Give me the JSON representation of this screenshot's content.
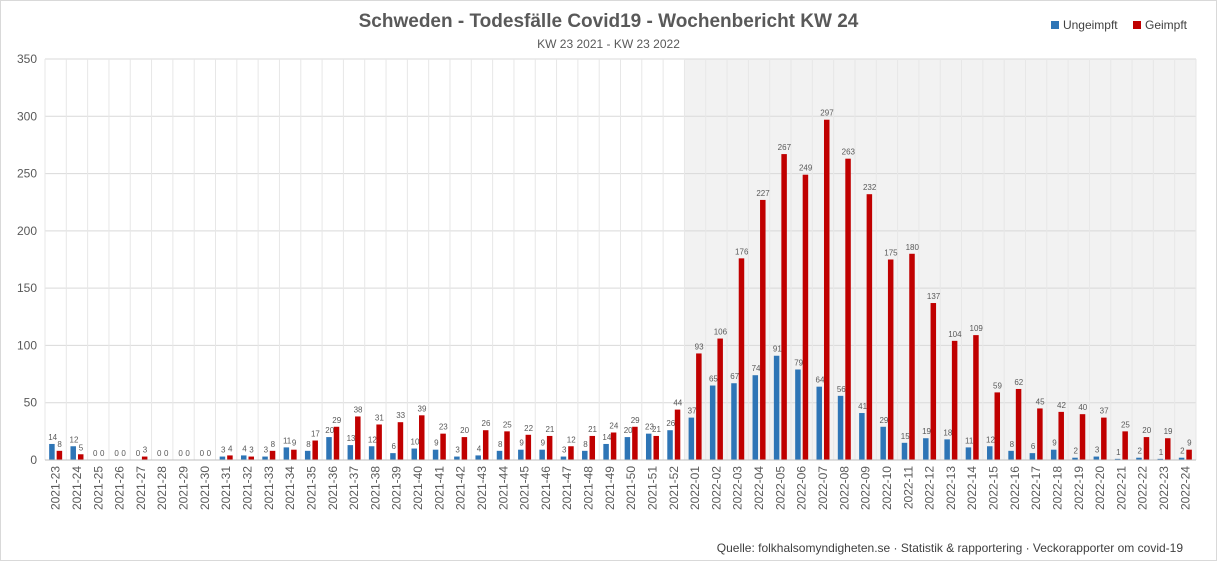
{
  "chart_data": {
    "type": "bar",
    "title": "Schweden - Todesfälle Covid19 - Wochenbericht KW 24",
    "subtitle": "KW 23 2021 - KW 23 2022",
    "ylim": [
      0,
      350
    ],
    "yticks": [
      0,
      50,
      100,
      150,
      200,
      250,
      300,
      350
    ],
    "grid": true,
    "legend_position": "top-right",
    "categories": [
      "2021-23",
      "2021-24",
      "2021-25",
      "2021-26",
      "2021-27",
      "2021-28",
      "2021-29",
      "2021-30",
      "2021-31",
      "2021-32",
      "2021-33",
      "2021-34",
      "2021-35",
      "2021-36",
      "2021-37",
      "2021-38",
      "2021-39",
      "2021-40",
      "2021-41",
      "2021-42",
      "2021-43",
      "2021-44",
      "2021-45",
      "2021-46",
      "2021-47",
      "2021-48",
      "2021-49",
      "2021-50",
      "2021-51",
      "2021-52",
      "2022-01",
      "2022-02",
      "2022-03",
      "2022-04",
      "2022-05",
      "2022-06",
      "2022-07",
      "2022-08",
      "2022-09",
      "2022-10",
      "2022-11",
      "2022-12",
      "2022-13",
      "2022-14",
      "2022-15",
      "2022-16",
      "2022-17",
      "2022-18",
      "2022-19",
      "2022-20",
      "2022-21",
      "2022-22",
      "2022-23",
      "2022-24"
    ],
    "series": [
      {
        "name": "Ungeimpft",
        "color": "#2e75b6",
        "values": [
          14,
          12,
          0,
          0,
          0,
          0,
          0,
          0,
          3,
          4,
          3,
          11,
          8,
          20,
          13,
          12,
          6,
          10,
          9,
          3,
          4,
          8,
          9,
          9,
          3,
          8,
          14,
          20,
          23,
          26,
          37,
          65,
          67,
          74,
          91,
          79,
          64,
          56,
          41,
          29,
          15,
          19,
          18,
          11,
          12,
          8,
          6,
          9,
          2,
          3,
          1,
          2,
          1,
          2
        ]
      },
      {
        "name": "Geimpft",
        "color": "#c00000",
        "values": [
          8,
          5,
          0,
          0,
          3,
          0,
          0,
          0,
          4,
          3,
          8,
          9,
          17,
          29,
          38,
          31,
          33,
          39,
          23,
          20,
          26,
          25,
          22,
          21,
          12,
          21,
          24,
          29,
          21,
          44,
          93,
          106,
          176,
          227,
          267,
          249,
          297,
          263,
          232,
          175,
          180,
          137,
          104,
          109,
          59,
          62,
          45,
          42,
          40,
          37,
          25,
          20,
          19,
          9
        ]
      }
    ],
    "shaded_from_category": "2022-01",
    "shade_color": "#f2f2f2"
  },
  "source": "Quelle: folkhalsomyndigheten.se  ·  Statistik & rapportering  ·  Veckorapporter om covid-19"
}
